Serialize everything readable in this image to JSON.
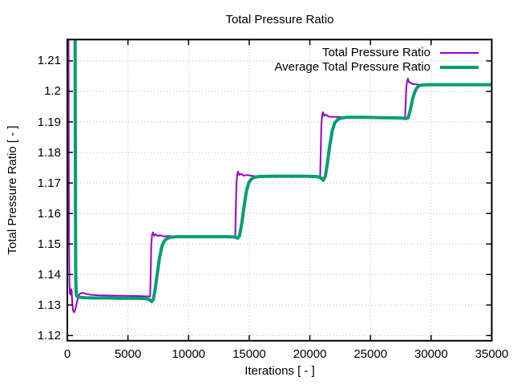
{
  "title": "Total Pressure Ratio",
  "chart_data": {
    "type": "line",
    "title": "Total Pressure Ratio",
    "xlabel": "Iterations [ - ]",
    "ylabel": "Total Pressure Ratio [ - ]",
    "xlim": [
      0,
      35000
    ],
    "ylim": [
      1.1183,
      1.217
    ],
    "xticks": [
      0,
      5000,
      10000,
      15000,
      20000,
      25000,
      30000,
      35000
    ],
    "yticks": [
      1.12,
      1.13,
      1.14,
      1.15,
      1.16,
      1.17,
      1.18,
      1.19,
      1.2,
      1.21
    ],
    "grid": true,
    "grid_color": "#bbbbbb",
    "border_color": "#000000",
    "background": "#ffffff",
    "legend_position": "top-right-inside",
    "series": [
      {
        "name": "Total Pressure Ratio",
        "color": "#9400d3",
        "line_width": 2,
        "points": [
          [
            100,
            1.217
          ],
          [
            118,
            1.18
          ],
          [
            140,
            1.152
          ],
          [
            170,
            1.138
          ],
          [
            210,
            1.1338
          ],
          [
            260,
            1.1334
          ],
          [
            310,
            1.1352
          ],
          [
            360,
            1.1348
          ],
          [
            410,
            1.1305
          ],
          [
            470,
            1.1282
          ],
          [
            560,
            1.1276
          ],
          [
            660,
            1.1286
          ],
          [
            780,
            1.1308
          ],
          [
            920,
            1.133
          ],
          [
            1060,
            1.1338
          ],
          [
            1250,
            1.134
          ],
          [
            1500,
            1.1337
          ],
          [
            1900,
            1.1334
          ],
          [
            2500,
            1.1332
          ],
          [
            3500,
            1.1331
          ],
          [
            5000,
            1.133
          ],
          [
            6200,
            1.1329
          ],
          [
            6830,
            1.1328
          ],
          [
            6880,
            1.142
          ],
          [
            6930,
            1.15
          ],
          [
            6990,
            1.153
          ],
          [
            7060,
            1.1538
          ],
          [
            7150,
            1.1527
          ],
          [
            7290,
            1.1532
          ],
          [
            7450,
            1.1526
          ],
          [
            7650,
            1.1529
          ],
          [
            7900,
            1.1525
          ],
          [
            8300,
            1.1526
          ],
          [
            9000,
            1.1525
          ],
          [
            10500,
            1.1524
          ],
          [
            12500,
            1.1524
          ],
          [
            13850,
            1.1524
          ],
          [
            13900,
            1.162
          ],
          [
            13950,
            1.17
          ],
          [
            14010,
            1.1728
          ],
          [
            14080,
            1.1737
          ],
          [
            14180,
            1.1726
          ],
          [
            14330,
            1.173
          ],
          [
            14520,
            1.1724
          ],
          [
            14800,
            1.1726
          ],
          [
            15300,
            1.1723
          ],
          [
            16500,
            1.1722
          ],
          [
            18500,
            1.1722
          ],
          [
            20850,
            1.1721
          ],
          [
            20900,
            1.181
          ],
          [
            20950,
            1.189
          ],
          [
            21010,
            1.192
          ],
          [
            21080,
            1.1932
          ],
          [
            21180,
            1.192
          ],
          [
            21330,
            1.1924
          ],
          [
            21520,
            1.1918
          ],
          [
            21800,
            1.1917
          ],
          [
            22500,
            1.1916
          ],
          [
            24000,
            1.1915
          ],
          [
            26000,
            1.1915
          ],
          [
            27850,
            1.1914
          ],
          [
            27900,
            1.196
          ],
          [
            27950,
            1.201
          ],
          [
            28010,
            1.2032
          ],
          [
            28080,
            1.2042
          ],
          [
            28180,
            1.203
          ],
          [
            28330,
            1.2028
          ],
          [
            28520,
            1.2024
          ],
          [
            28800,
            1.2023
          ],
          [
            29400,
            1.2022
          ],
          [
            31000,
            1.2022
          ],
          [
            33000,
            1.2022
          ],
          [
            35000,
            1.2022
          ]
        ]
      },
      {
        "name": "Average Total Pressure Ratio",
        "color": "#009e73",
        "line_width": 4,
        "points": [
          [
            640,
            1.217
          ],
          [
            655,
            1.19
          ],
          [
            672,
            1.16
          ],
          [
            690,
            1.143
          ],
          [
            715,
            1.1355
          ],
          [
            750,
            1.1334
          ],
          [
            800,
            1.1328
          ],
          [
            900,
            1.1326
          ],
          [
            1100,
            1.1325
          ],
          [
            1500,
            1.1324
          ],
          [
            2200,
            1.1323
          ],
          [
            3200,
            1.1323
          ],
          [
            4500,
            1.1322
          ],
          [
            5800,
            1.1322
          ],
          [
            6500,
            1.1321
          ],
          [
            6800,
            1.1317
          ],
          [
            6950,
            1.1311
          ],
          [
            7080,
            1.1317
          ],
          [
            7220,
            1.1345
          ],
          [
            7400,
            1.1398
          ],
          [
            7600,
            1.1455
          ],
          [
            7800,
            1.1492
          ],
          [
            8000,
            1.151
          ],
          [
            8250,
            1.1519
          ],
          [
            8550,
            1.1522
          ],
          [
            9000,
            1.1524
          ],
          [
            10000,
            1.1524
          ],
          [
            11500,
            1.1524
          ],
          [
            13000,
            1.1524
          ],
          [
            13800,
            1.1523
          ],
          [
            14050,
            1.1519
          ],
          [
            14200,
            1.1527
          ],
          [
            14380,
            1.1565
          ],
          [
            14580,
            1.1625
          ],
          [
            14780,
            1.1675
          ],
          [
            14980,
            1.1702
          ],
          [
            15200,
            1.1714
          ],
          [
            15450,
            1.1719
          ],
          [
            15800,
            1.1721
          ],
          [
            16500,
            1.1722
          ],
          [
            18000,
            1.1722
          ],
          [
            19500,
            1.1722
          ],
          [
            20600,
            1.1721
          ],
          [
            20900,
            1.1717
          ],
          [
            21100,
            1.1709
          ],
          [
            21280,
            1.1722
          ],
          [
            21450,
            1.1765
          ],
          [
            21650,
            1.1825
          ],
          [
            21850,
            1.1872
          ],
          [
            22050,
            1.1897
          ],
          [
            22300,
            1.1908
          ],
          [
            22600,
            1.1913
          ],
          [
            23000,
            1.1915
          ],
          [
            24500,
            1.1915
          ],
          [
            26000,
            1.1914
          ],
          [
            27500,
            1.1913
          ],
          [
            27900,
            1.1911
          ],
          [
            28100,
            1.1913
          ],
          [
            28280,
            1.1938
          ],
          [
            28470,
            1.1975
          ],
          [
            28660,
            1.2
          ],
          [
            28850,
            1.2013
          ],
          [
            29050,
            1.2019
          ],
          [
            29300,
            1.2021
          ],
          [
            29700,
            1.2022
          ],
          [
            31000,
            1.2022
          ],
          [
            33000,
            1.2022
          ],
          [
            35000,
            1.2022
          ]
        ]
      }
    ]
  }
}
